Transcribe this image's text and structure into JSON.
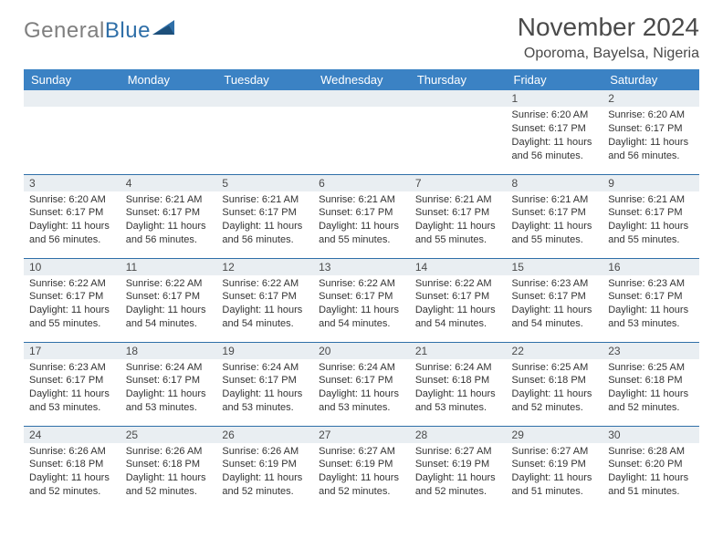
{
  "logo": {
    "gray": "General",
    "blue": "Blue"
  },
  "title": "November 2024",
  "location": "Oporoma, Bayelsa, Nigeria",
  "colors": {
    "header_bg": "#3b82c4",
    "daynum_bg": "#e9eef2",
    "row_border": "#2f6fa8",
    "text": "#333333",
    "title_text": "#4a4a4a",
    "logo_gray": "#7f7f7f",
    "logo_blue": "#2f6fa8"
  },
  "weekdays": [
    "Sunday",
    "Monday",
    "Tuesday",
    "Wednesday",
    "Thursday",
    "Friday",
    "Saturday"
  ],
  "weeks": [
    [
      null,
      null,
      null,
      null,
      null,
      {
        "n": "1",
        "sr": "6:20 AM",
        "ss": "6:17 PM",
        "dl": "11 hours and 56 minutes."
      },
      {
        "n": "2",
        "sr": "6:20 AM",
        "ss": "6:17 PM",
        "dl": "11 hours and 56 minutes."
      }
    ],
    [
      {
        "n": "3",
        "sr": "6:20 AM",
        "ss": "6:17 PM",
        "dl": "11 hours and 56 minutes."
      },
      {
        "n": "4",
        "sr": "6:21 AM",
        "ss": "6:17 PM",
        "dl": "11 hours and 56 minutes."
      },
      {
        "n": "5",
        "sr": "6:21 AM",
        "ss": "6:17 PM",
        "dl": "11 hours and 56 minutes."
      },
      {
        "n": "6",
        "sr": "6:21 AM",
        "ss": "6:17 PM",
        "dl": "11 hours and 55 minutes."
      },
      {
        "n": "7",
        "sr": "6:21 AM",
        "ss": "6:17 PM",
        "dl": "11 hours and 55 minutes."
      },
      {
        "n": "8",
        "sr": "6:21 AM",
        "ss": "6:17 PM",
        "dl": "11 hours and 55 minutes."
      },
      {
        "n": "9",
        "sr": "6:21 AM",
        "ss": "6:17 PM",
        "dl": "11 hours and 55 minutes."
      }
    ],
    [
      {
        "n": "10",
        "sr": "6:22 AM",
        "ss": "6:17 PM",
        "dl": "11 hours and 55 minutes."
      },
      {
        "n": "11",
        "sr": "6:22 AM",
        "ss": "6:17 PM",
        "dl": "11 hours and 54 minutes."
      },
      {
        "n": "12",
        "sr": "6:22 AM",
        "ss": "6:17 PM",
        "dl": "11 hours and 54 minutes."
      },
      {
        "n": "13",
        "sr": "6:22 AM",
        "ss": "6:17 PM",
        "dl": "11 hours and 54 minutes."
      },
      {
        "n": "14",
        "sr": "6:22 AM",
        "ss": "6:17 PM",
        "dl": "11 hours and 54 minutes."
      },
      {
        "n": "15",
        "sr": "6:23 AM",
        "ss": "6:17 PM",
        "dl": "11 hours and 54 minutes."
      },
      {
        "n": "16",
        "sr": "6:23 AM",
        "ss": "6:17 PM",
        "dl": "11 hours and 53 minutes."
      }
    ],
    [
      {
        "n": "17",
        "sr": "6:23 AM",
        "ss": "6:17 PM",
        "dl": "11 hours and 53 minutes."
      },
      {
        "n": "18",
        "sr": "6:24 AM",
        "ss": "6:17 PM",
        "dl": "11 hours and 53 minutes."
      },
      {
        "n": "19",
        "sr": "6:24 AM",
        "ss": "6:17 PM",
        "dl": "11 hours and 53 minutes."
      },
      {
        "n": "20",
        "sr": "6:24 AM",
        "ss": "6:17 PM",
        "dl": "11 hours and 53 minutes."
      },
      {
        "n": "21",
        "sr": "6:24 AM",
        "ss": "6:18 PM",
        "dl": "11 hours and 53 minutes."
      },
      {
        "n": "22",
        "sr": "6:25 AM",
        "ss": "6:18 PM",
        "dl": "11 hours and 52 minutes."
      },
      {
        "n": "23",
        "sr": "6:25 AM",
        "ss": "6:18 PM",
        "dl": "11 hours and 52 minutes."
      }
    ],
    [
      {
        "n": "24",
        "sr": "6:26 AM",
        "ss": "6:18 PM",
        "dl": "11 hours and 52 minutes."
      },
      {
        "n": "25",
        "sr": "6:26 AM",
        "ss": "6:18 PM",
        "dl": "11 hours and 52 minutes."
      },
      {
        "n": "26",
        "sr": "6:26 AM",
        "ss": "6:19 PM",
        "dl": "11 hours and 52 minutes."
      },
      {
        "n": "27",
        "sr": "6:27 AM",
        "ss": "6:19 PM",
        "dl": "11 hours and 52 minutes."
      },
      {
        "n": "28",
        "sr": "6:27 AM",
        "ss": "6:19 PM",
        "dl": "11 hours and 52 minutes."
      },
      {
        "n": "29",
        "sr": "6:27 AM",
        "ss": "6:19 PM",
        "dl": "11 hours and 51 minutes."
      },
      {
        "n": "30",
        "sr": "6:28 AM",
        "ss": "6:20 PM",
        "dl": "11 hours and 51 minutes."
      }
    ]
  ],
  "labels": {
    "sunrise": "Sunrise: ",
    "sunset": "Sunset: ",
    "daylight": "Daylight: "
  }
}
